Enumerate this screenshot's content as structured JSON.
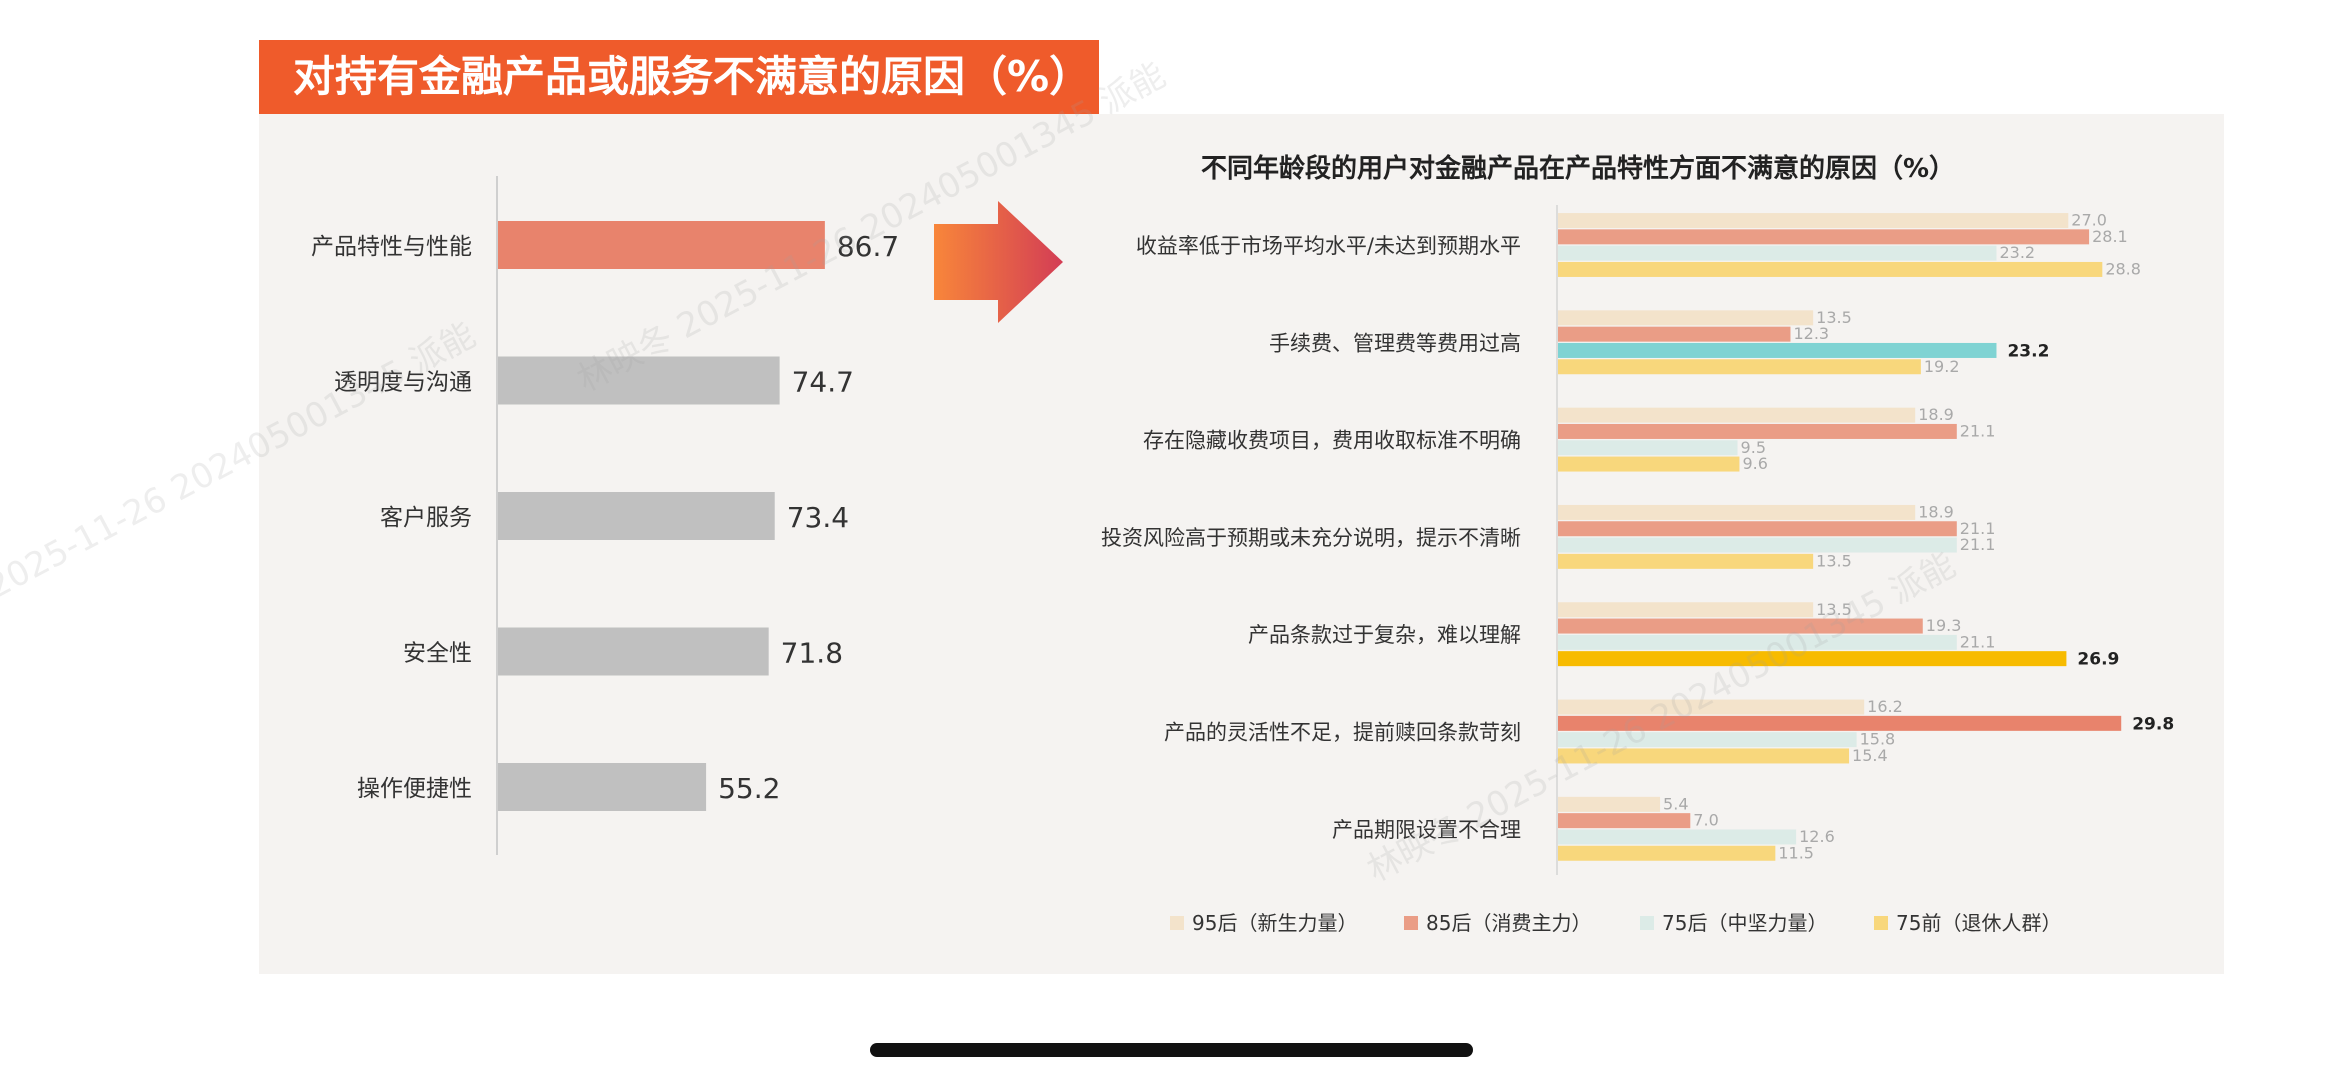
{
  "banner_title": "对持有金融产品或服务不满意的原因（%）",
  "watermark_text": "林映冬 2025-11-26 202405001345 派能",
  "colors": {
    "banner": "#ef5b2b",
    "panel": "#f5f3f1",
    "highlight_bar": "#e8836c",
    "gray_bar": "#c0c0c0",
    "arrow_start": "#f8863a",
    "arrow_end": "#d33d55"
  },
  "chart_data": [
    {
      "type": "bar",
      "orientation": "horizontal",
      "categories": [
        "产品特性与性能",
        "透明度与沟通",
        "客户服务",
        "安全性",
        "操作便捷性"
      ],
      "values": [
        86.7,
        74.7,
        73.4,
        71.8,
        55.2
      ],
      "value_labels": [
        "86.7",
        "74.7",
        "73.4",
        "71.8",
        "55.2"
      ],
      "highlight_index": 0
    },
    {
      "type": "bar",
      "orientation": "horizontal",
      "title": "不同年龄段的用户对金融产品在产品特性方面不满意的原因（%）",
      "categories": [
        "收益率低于市场平均水平/未达到预期水平",
        "手续费、管理费等费用过高",
        "存在隐藏收费项目，费用收取标准不明确",
        "投资风险高于预期或未充分说明，提示不清晰",
        "产品条款过于复杂，难以理解",
        "产品的灵活性不足，提前赎回条款苛刻",
        "产品期限设置不合理"
      ],
      "series": [
        {
          "name": "95后（新生力量）",
          "color": "#f3e3cb",
          "values": [
            27.0,
            13.5,
            18.9,
            18.9,
            13.5,
            16.2,
            5.4
          ],
          "labels": [
            "27.0",
            "13.5",
            "18.9",
            "18.9",
            "13.5",
            "16.2",
            "5.4"
          ]
        },
        {
          "name": "85后（消费主力）",
          "color": "#ea9d86",
          "values": [
            28.1,
            12.3,
            21.1,
            21.1,
            19.3,
            29.8,
            7.0
          ],
          "labels": [
            "28.1",
            "12.3",
            "21.1",
            "21.1",
            "19.3",
            "29.8",
            "7.0"
          ]
        },
        {
          "name": "75后（中坚力量）",
          "color": "#dcebe7",
          "values": [
            23.2,
            23.2,
            9.5,
            21.1,
            21.1,
            15.8,
            12.6
          ],
          "labels": [
            "23.2",
            "23.2",
            "9.5",
            "21.1",
            "21.1",
            "15.8",
            "12.6"
          ]
        },
        {
          "name": "75前（退休人群）",
          "color": "#f8d77c",
          "values": [
            28.8,
            19.2,
            9.6,
            13.5,
            26.9,
            15.4,
            11.5
          ],
          "labels": [
            "28.8",
            "19.2",
            "9.6",
            "13.5",
            "26.9",
            "15.4",
            "11.5"
          ]
        }
      ],
      "highlights": [
        {
          "category_index": 1,
          "series_index": 2,
          "color": "#7fd3d3"
        },
        {
          "category_index": 4,
          "series_index": 3,
          "color": "#f7bb00"
        },
        {
          "category_index": 5,
          "series_index": 1,
          "color": "#e8836c"
        }
      ],
      "xlim": [
        0,
        32
      ],
      "legend_position": "bottom"
    }
  ]
}
